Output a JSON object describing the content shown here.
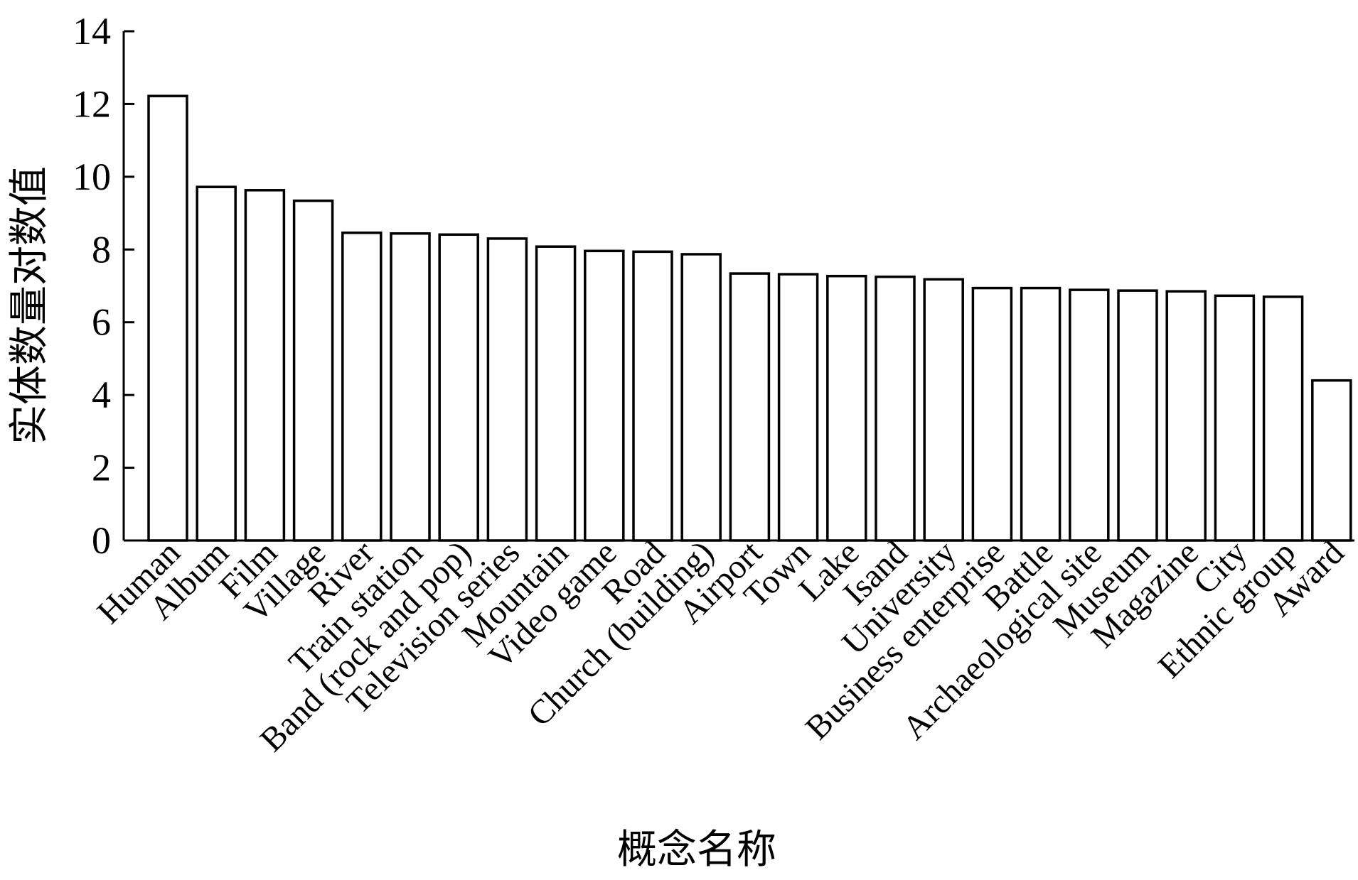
{
  "chart_data": {
    "type": "bar",
    "x_label": "概念名称",
    "y_label": "实体数量对数值",
    "categories": [
      "Human",
      "Album",
      "Film",
      "Village",
      "River",
      "Train station",
      "Band (rock and pop)",
      "Television series",
      "Mountain",
      "Video game",
      "Road",
      "Church (building)",
      "Airport",
      "Town",
      "Lake",
      "Isand",
      "University",
      "Business enterprise",
      "Battle",
      "Archaeological site",
      "Museum",
      "Magazine",
      "City",
      "Ethnic group",
      "Award"
    ],
    "values": [
      12.22,
      9.72,
      9.63,
      9.34,
      8.46,
      8.44,
      8.41,
      8.3,
      8.08,
      7.96,
      7.94,
      7.87,
      7.34,
      7.32,
      7.27,
      7.25,
      7.18,
      6.94,
      6.94,
      6.89,
      6.87,
      6.85,
      6.73,
      6.7,
      4.4
    ],
    "color": "#ffffff",
    "ylim": [
      0,
      14
    ],
    "yticks": [
      0,
      2,
      4,
      6,
      8,
      10,
      12,
      14
    ],
    "grid": false
  }
}
